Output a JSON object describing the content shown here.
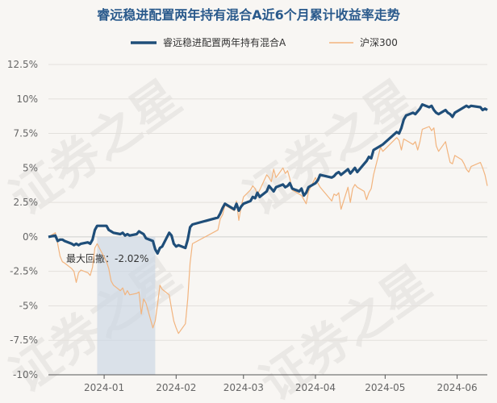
{
  "chart_data": {
    "type": "line",
    "title": "睿远稳进配置两年持有混合A近6个月累计收益率走势",
    "legend_placement": "top",
    "grid": {
      "horizontal": true,
      "vertical": false
    },
    "ylim": [
      -10,
      12.5
    ],
    "y_ticks": [
      12.5,
      10,
      7.5,
      5,
      2.5,
      0,
      -2.5,
      -5,
      -7.5,
      -10
    ],
    "y_tick_labels": [
      "12.5%",
      "10%",
      "7.5%",
      "5%",
      "2.5%",
      "0%",
      "-2.5%",
      "-5%",
      "-7.5%",
      "-10%"
    ],
    "x_range": [
      "2023-12-08",
      "2024-06-14"
    ],
    "x_ticks": [
      {
        "date": "2024-01-01",
        "label": "2024-01"
      },
      {
        "date": "2024-02-01",
        "label": "2024-02"
      },
      {
        "date": "2024-03-01",
        "label": "2024-03"
      },
      {
        "date": "2024-04-01",
        "label": "2024-04"
      },
      {
        "date": "2024-05-01",
        "label": "2024-05"
      },
      {
        "date": "2024-06-01",
        "label": "2024-06"
      }
    ],
    "max_drawdown": {
      "label": "最大回撤：-2.02%",
      "start": "2023-12-29",
      "end": "2024-01-23"
    },
    "watermark": "证券之星",
    "series": [
      {
        "name": "睿远稳进配置两年持有混合A",
        "color": "#1f4e79",
        "points": [
          [
            "2023-12-08",
            0.0
          ],
          [
            "2023-12-11",
            0.1
          ],
          [
            "2023-12-12",
            -0.3
          ],
          [
            "2023-12-13",
            -0.2
          ],
          [
            "2023-12-14",
            -0.2
          ],
          [
            "2023-12-15",
            -0.3
          ],
          [
            "2023-12-18",
            -0.5
          ],
          [
            "2023-12-19",
            -0.6
          ],
          [
            "2023-12-20",
            -0.5
          ],
          [
            "2023-12-21",
            -0.6
          ],
          [
            "2023-12-22",
            -0.5
          ],
          [
            "2023-12-25",
            -0.4
          ],
          [
            "2023-12-26",
            -0.5
          ],
          [
            "2023-12-27",
            -0.2
          ],
          [
            "2023-12-28",
            0.5
          ],
          [
            "2023-12-29",
            0.8
          ],
          [
            "2024-01-02",
            0.8
          ],
          [
            "2024-01-03",
            0.5
          ],
          [
            "2024-01-04",
            0.4
          ],
          [
            "2024-01-05",
            0.3
          ],
          [
            "2024-01-08",
            0.2
          ],
          [
            "2024-01-09",
            0.3
          ],
          [
            "2024-01-10",
            0.1
          ],
          [
            "2024-01-11",
            0.2
          ],
          [
            "2024-01-12",
            0.1
          ],
          [
            "2024-01-15",
            0.2
          ],
          [
            "2024-01-16",
            0.4
          ],
          [
            "2024-01-17",
            0.3
          ],
          [
            "2024-01-18",
            0.2
          ],
          [
            "2024-01-19",
            -0.1
          ],
          [
            "2024-01-22",
            -0.3
          ],
          [
            "2024-01-23",
            -0.9
          ],
          [
            "2024-01-24",
            -1.2
          ],
          [
            "2024-01-25",
            -0.8
          ],
          [
            "2024-01-26",
            -0.7
          ],
          [
            "2024-01-29",
            0.3
          ],
          [
            "2024-01-30",
            0.1
          ],
          [
            "2024-01-31",
            -0.5
          ],
          [
            "2024-02-01",
            -0.7
          ],
          [
            "2024-02-02",
            -0.6
          ],
          [
            "2024-02-05",
            -0.8
          ],
          [
            "2024-02-06",
            -0.2
          ],
          [
            "2024-02-07",
            0.7
          ],
          [
            "2024-02-08",
            0.9
          ],
          [
            "2024-02-19",
            1.4
          ],
          [
            "2024-02-20",
            1.7
          ],
          [
            "2024-02-21",
            2.1
          ],
          [
            "2024-02-22",
            2.4
          ],
          [
            "2024-02-23",
            2.3
          ],
          [
            "2024-02-26",
            2.0
          ],
          [
            "2024-02-27",
            2.4
          ],
          [
            "2024-02-28",
            1.9
          ],
          [
            "2024-02-29",
            2.2
          ],
          [
            "2024-03-01",
            2.4
          ],
          [
            "2024-03-04",
            2.6
          ],
          [
            "2024-03-05",
            2.9
          ],
          [
            "2024-03-06",
            2.8
          ],
          [
            "2024-03-07",
            3.2
          ],
          [
            "2024-03-08",
            2.9
          ],
          [
            "2024-03-11",
            3.3
          ],
          [
            "2024-03-12",
            3.7
          ],
          [
            "2024-03-13",
            3.5
          ],
          [
            "2024-03-14",
            3.3
          ],
          [
            "2024-03-15",
            3.6
          ],
          [
            "2024-03-18",
            3.8
          ],
          [
            "2024-03-19",
            3.6
          ],
          [
            "2024-03-20",
            3.7
          ],
          [
            "2024-03-21",
            3.9
          ],
          [
            "2024-03-22",
            3.5
          ],
          [
            "2024-03-25",
            3.3
          ],
          [
            "2024-03-26",
            3.5
          ],
          [
            "2024-03-27",
            3.0
          ],
          [
            "2024-03-28",
            3.2
          ],
          [
            "2024-03-29",
            3.6
          ],
          [
            "2024-04-01",
            3.9
          ],
          [
            "2024-04-02",
            4.1
          ],
          [
            "2024-04-03",
            4.5
          ],
          [
            "2024-04-08",
            4.3
          ],
          [
            "2024-04-09",
            4.4
          ],
          [
            "2024-04-10",
            4.6
          ],
          [
            "2024-04-11",
            4.7
          ],
          [
            "2024-04-12",
            4.5
          ],
          [
            "2024-04-15",
            4.9
          ],
          [
            "2024-04-16",
            4.6
          ],
          [
            "2024-04-17",
            4.8
          ],
          [
            "2024-04-18",
            5.0
          ],
          [
            "2024-04-19",
            4.7
          ],
          [
            "2024-04-22",
            5.3
          ],
          [
            "2024-04-23",
            5.5
          ],
          [
            "2024-04-24",
            5.8
          ],
          [
            "2024-04-25",
            5.7
          ],
          [
            "2024-04-26",
            6.3
          ],
          [
            "2024-04-29",
            6.6
          ],
          [
            "2024-04-30",
            6.7
          ],
          [
            "2024-05-06",
            7.6
          ],
          [
            "2024-05-07",
            7.5
          ],
          [
            "2024-05-08",
            7.9
          ],
          [
            "2024-05-09",
            8.5
          ],
          [
            "2024-05-10",
            8.8
          ],
          [
            "2024-05-13",
            9.0
          ],
          [
            "2024-05-14",
            8.9
          ],
          [
            "2024-05-15",
            9.1
          ],
          [
            "2024-05-16",
            9.3
          ],
          [
            "2024-05-17",
            9.6
          ],
          [
            "2024-05-20",
            9.4
          ],
          [
            "2024-05-21",
            9.5
          ],
          [
            "2024-05-22",
            9.2
          ],
          [
            "2024-05-23",
            9.0
          ],
          [
            "2024-05-24",
            8.9
          ],
          [
            "2024-05-27",
            9.2
          ],
          [
            "2024-05-28",
            9.0
          ],
          [
            "2024-05-29",
            8.9
          ],
          [
            "2024-05-30",
            8.7
          ],
          [
            "2024-05-31",
            9.0
          ],
          [
            "2024-06-03",
            9.3
          ],
          [
            "2024-06-04",
            9.4
          ],
          [
            "2024-06-05",
            9.5
          ],
          [
            "2024-06-06",
            9.4
          ],
          [
            "2024-06-07",
            9.5
          ],
          [
            "2024-06-11",
            9.4
          ],
          [
            "2024-06-12",
            9.2
          ],
          [
            "2024-06-13",
            9.3
          ],
          [
            "2024-06-14",
            9.2
          ]
        ]
      },
      {
        "name": "沪深300",
        "color": "#f2b47e",
        "points": [
          [
            "2023-12-08",
            0.0
          ],
          [
            "2023-12-11",
            0.3
          ],
          [
            "2023-12-12",
            -0.5
          ],
          [
            "2023-12-13",
            -1.4
          ],
          [
            "2023-12-14",
            -1.8
          ],
          [
            "2023-12-15",
            -1.9
          ],
          [
            "2023-12-18",
            -2.3
          ],
          [
            "2023-12-19",
            -2.5
          ],
          [
            "2023-12-20",
            -3.3
          ],
          [
            "2023-12-21",
            -2.6
          ],
          [
            "2023-12-22",
            -2.4
          ],
          [
            "2023-12-25",
            -2.6
          ],
          [
            "2023-12-26",
            -2.8
          ],
          [
            "2023-12-27",
            -2.2
          ],
          [
            "2023-12-28",
            -0.8
          ],
          [
            "2023-12-29",
            -0.5
          ],
          [
            "2024-01-02",
            -1.8
          ],
          [
            "2024-01-03",
            -2.3
          ],
          [
            "2024-01-04",
            -3.2
          ],
          [
            "2024-01-05",
            -3.5
          ],
          [
            "2024-01-08",
            -3.9
          ],
          [
            "2024-01-09",
            -3.7
          ],
          [
            "2024-01-10",
            -4.2
          ],
          [
            "2024-01-11",
            -3.9
          ],
          [
            "2024-01-12",
            -4.2
          ],
          [
            "2024-01-15",
            -4.1
          ],
          [
            "2024-01-16",
            -4.0
          ],
          [
            "2024-01-17",
            -5.6
          ],
          [
            "2024-01-18",
            -4.5
          ],
          [
            "2024-01-19",
            -4.8
          ],
          [
            "2024-01-22",
            -6.6
          ],
          [
            "2024-01-23",
            -6.1
          ],
          [
            "2024-01-24",
            -4.9
          ],
          [
            "2024-01-25",
            -3.5
          ],
          [
            "2024-01-26",
            -3.8
          ],
          [
            "2024-01-29",
            -4.2
          ],
          [
            "2024-01-30",
            -5.2
          ],
          [
            "2024-01-31",
            -6.1
          ],
          [
            "2024-02-01",
            -6.6
          ],
          [
            "2024-02-02",
            -7.0
          ],
          [
            "2024-02-05",
            -6.3
          ],
          [
            "2024-02-06",
            -4.5
          ],
          [
            "2024-02-07",
            -1.9
          ],
          [
            "2024-02-08",
            -0.5
          ],
          [
            "2024-02-19",
            0.5
          ],
          [
            "2024-02-20",
            1.3
          ],
          [
            "2024-02-21",
            1.6
          ],
          [
            "2024-02-22",
            2.3
          ],
          [
            "2024-02-23",
            2.2
          ],
          [
            "2024-02-26",
            1.9
          ],
          [
            "2024-02-27",
            2.6
          ],
          [
            "2024-02-28",
            1.2
          ],
          [
            "2024-02-29",
            2.2
          ],
          [
            "2024-03-01",
            2.9
          ],
          [
            "2024-03-04",
            3.4
          ],
          [
            "2024-03-05",
            3.7
          ],
          [
            "2024-03-06",
            3.5
          ],
          [
            "2024-03-07",
            3.1
          ],
          [
            "2024-03-08",
            3.4
          ],
          [
            "2024-03-11",
            4.5
          ],
          [
            "2024-03-12",
            4.3
          ],
          [
            "2024-03-13",
            4.0
          ],
          [
            "2024-03-14",
            4.9
          ],
          [
            "2024-03-15",
            4.3
          ],
          [
            "2024-03-18",
            5.0
          ],
          [
            "2024-03-19",
            4.6
          ],
          [
            "2024-03-20",
            4.8
          ],
          [
            "2024-03-21",
            4.2
          ],
          [
            "2024-03-22",
            3.4
          ],
          [
            "2024-03-25",
            3.1
          ],
          [
            "2024-03-26",
            3.0
          ],
          [
            "2024-03-27",
            2.7
          ],
          [
            "2024-03-28",
            2.4
          ],
          [
            "2024-03-29",
            3.3
          ],
          [
            "2024-04-01",
            4.3
          ],
          [
            "2024-04-02",
            3.9
          ],
          [
            "2024-04-03",
            3.6
          ],
          [
            "2024-04-08",
            2.6
          ],
          [
            "2024-04-09",
            3.1
          ],
          [
            "2024-04-10",
            3.0
          ],
          [
            "2024-04-11",
            3.2
          ],
          [
            "2024-04-12",
            2.0
          ],
          [
            "2024-04-15",
            3.6
          ],
          [
            "2024-04-16",
            2.5
          ],
          [
            "2024-04-17",
            3.5
          ],
          [
            "2024-04-18",
            3.8
          ],
          [
            "2024-04-19",
            3.6
          ],
          [
            "2024-04-22",
            3.3
          ],
          [
            "2024-04-23",
            2.7
          ],
          [
            "2024-04-24",
            3.2
          ],
          [
            "2024-04-25",
            3.5
          ],
          [
            "2024-04-26",
            4.5
          ],
          [
            "2024-04-29",
            6.5
          ],
          [
            "2024-04-30",
            6.2
          ],
          [
            "2024-05-06",
            7.2
          ],
          [
            "2024-05-07",
            7.0
          ],
          [
            "2024-05-08",
            6.3
          ],
          [
            "2024-05-09",
            7.1
          ],
          [
            "2024-05-10",
            7.0
          ],
          [
            "2024-05-13",
            6.7
          ],
          [
            "2024-05-14",
            6.9
          ],
          [
            "2024-05-15",
            6.3
          ],
          [
            "2024-05-16",
            6.9
          ],
          [
            "2024-05-17",
            7.8
          ],
          [
            "2024-05-20",
            8.0
          ],
          [
            "2024-05-21",
            7.7
          ],
          [
            "2024-05-22",
            7.9
          ],
          [
            "2024-05-23",
            6.6
          ],
          [
            "2024-05-24",
            6.2
          ],
          [
            "2024-05-27",
            6.9
          ],
          [
            "2024-05-28",
            6.1
          ],
          [
            "2024-05-29",
            5.4
          ],
          [
            "2024-05-30",
            5.3
          ],
          [
            "2024-05-31",
            5.9
          ],
          [
            "2024-06-03",
            5.6
          ],
          [
            "2024-06-04",
            5.3
          ],
          [
            "2024-06-05",
            4.9
          ],
          [
            "2024-06-06",
            4.7
          ],
          [
            "2024-06-07",
            5.1
          ],
          [
            "2024-06-11",
            5.4
          ],
          [
            "2024-06-12",
            5.0
          ],
          [
            "2024-06-13",
            4.5
          ],
          [
            "2024-06-14",
            3.7
          ]
        ]
      }
    ]
  }
}
